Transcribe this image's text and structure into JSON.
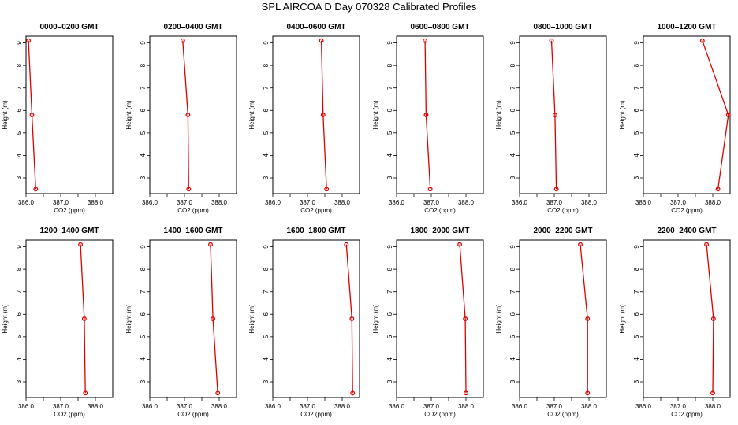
{
  "title": "SPL AIRCOA D  Day 070328  Calibrated Profiles",
  "chart_data": {
    "type": "line",
    "title": "SPL AIRCOA D  Day 070328  Calibrated Profiles",
    "xlabel": "CO2 (ppm)",
    "ylabel": "Height (m)",
    "xlim": [
      386.0,
      388.5
    ],
    "ylim": [
      2.3,
      9.3
    ],
    "x_ticks": [
      "386.0",
      "387.0",
      "388.0"
    ],
    "y_ticks": [
      "3",
      "4",
      "5",
      "6",
      "7",
      "8",
      "9"
    ],
    "heights": [
      9.1,
      5.8,
      2.5
    ],
    "color": "#dd0000",
    "grid": false,
    "panels": [
      {
        "title": "0000–0200 GMT",
        "x": [
          386.07,
          386.17,
          386.28
        ],
        "y": [
          9.1,
          5.8,
          2.5
        ]
      },
      {
        "title": "0200–0400 GMT",
        "x": [
          386.95,
          387.1,
          387.12
        ],
        "y": [
          9.1,
          5.8,
          2.5
        ]
      },
      {
        "title": "0400–0600 GMT",
        "x": [
          387.4,
          387.45,
          387.55
        ],
        "y": [
          9.1,
          5.8,
          2.5
        ]
      },
      {
        "title": "0600–0800 GMT",
        "x": [
          386.82,
          386.85,
          386.97
        ],
        "y": [
          9.1,
          5.8,
          2.5
        ]
      },
      {
        "title": "0800–1000 GMT",
        "x": [
          386.92,
          387.02,
          387.06
        ],
        "y": [
          9.1,
          5.8,
          2.5
        ]
      },
      {
        "title": "1000–1200 GMT",
        "x": [
          387.7,
          388.45,
          388.15
        ],
        "y": [
          9.1,
          5.8,
          2.5
        ]
      },
      {
        "title": "1200–1400 GMT",
        "x": [
          387.57,
          387.68,
          387.71
        ],
        "y": [
          9.1,
          5.8,
          2.5
        ]
      },
      {
        "title": "1400–1600 GMT",
        "x": [
          387.75,
          387.82,
          387.96
        ],
        "y": [
          9.1,
          5.8,
          2.5
        ]
      },
      {
        "title": "1600–1800 GMT",
        "x": [
          388.12,
          388.28,
          388.3
        ],
        "y": [
          9.1,
          5.8,
          2.5
        ]
      },
      {
        "title": "1800–2000 GMT",
        "x": [
          387.82,
          387.98,
          388.0
        ],
        "y": [
          9.1,
          5.8,
          2.5
        ]
      },
      {
        "title": "2000–2200 GMT",
        "x": [
          387.75,
          387.96,
          387.96
        ],
        "y": [
          9.1,
          5.8,
          2.5
        ]
      },
      {
        "title": "2200–2400 GMT",
        "x": [
          387.82,
          388.02,
          388.0
        ],
        "y": [
          9.1,
          5.8,
          2.5
        ]
      }
    ]
  }
}
